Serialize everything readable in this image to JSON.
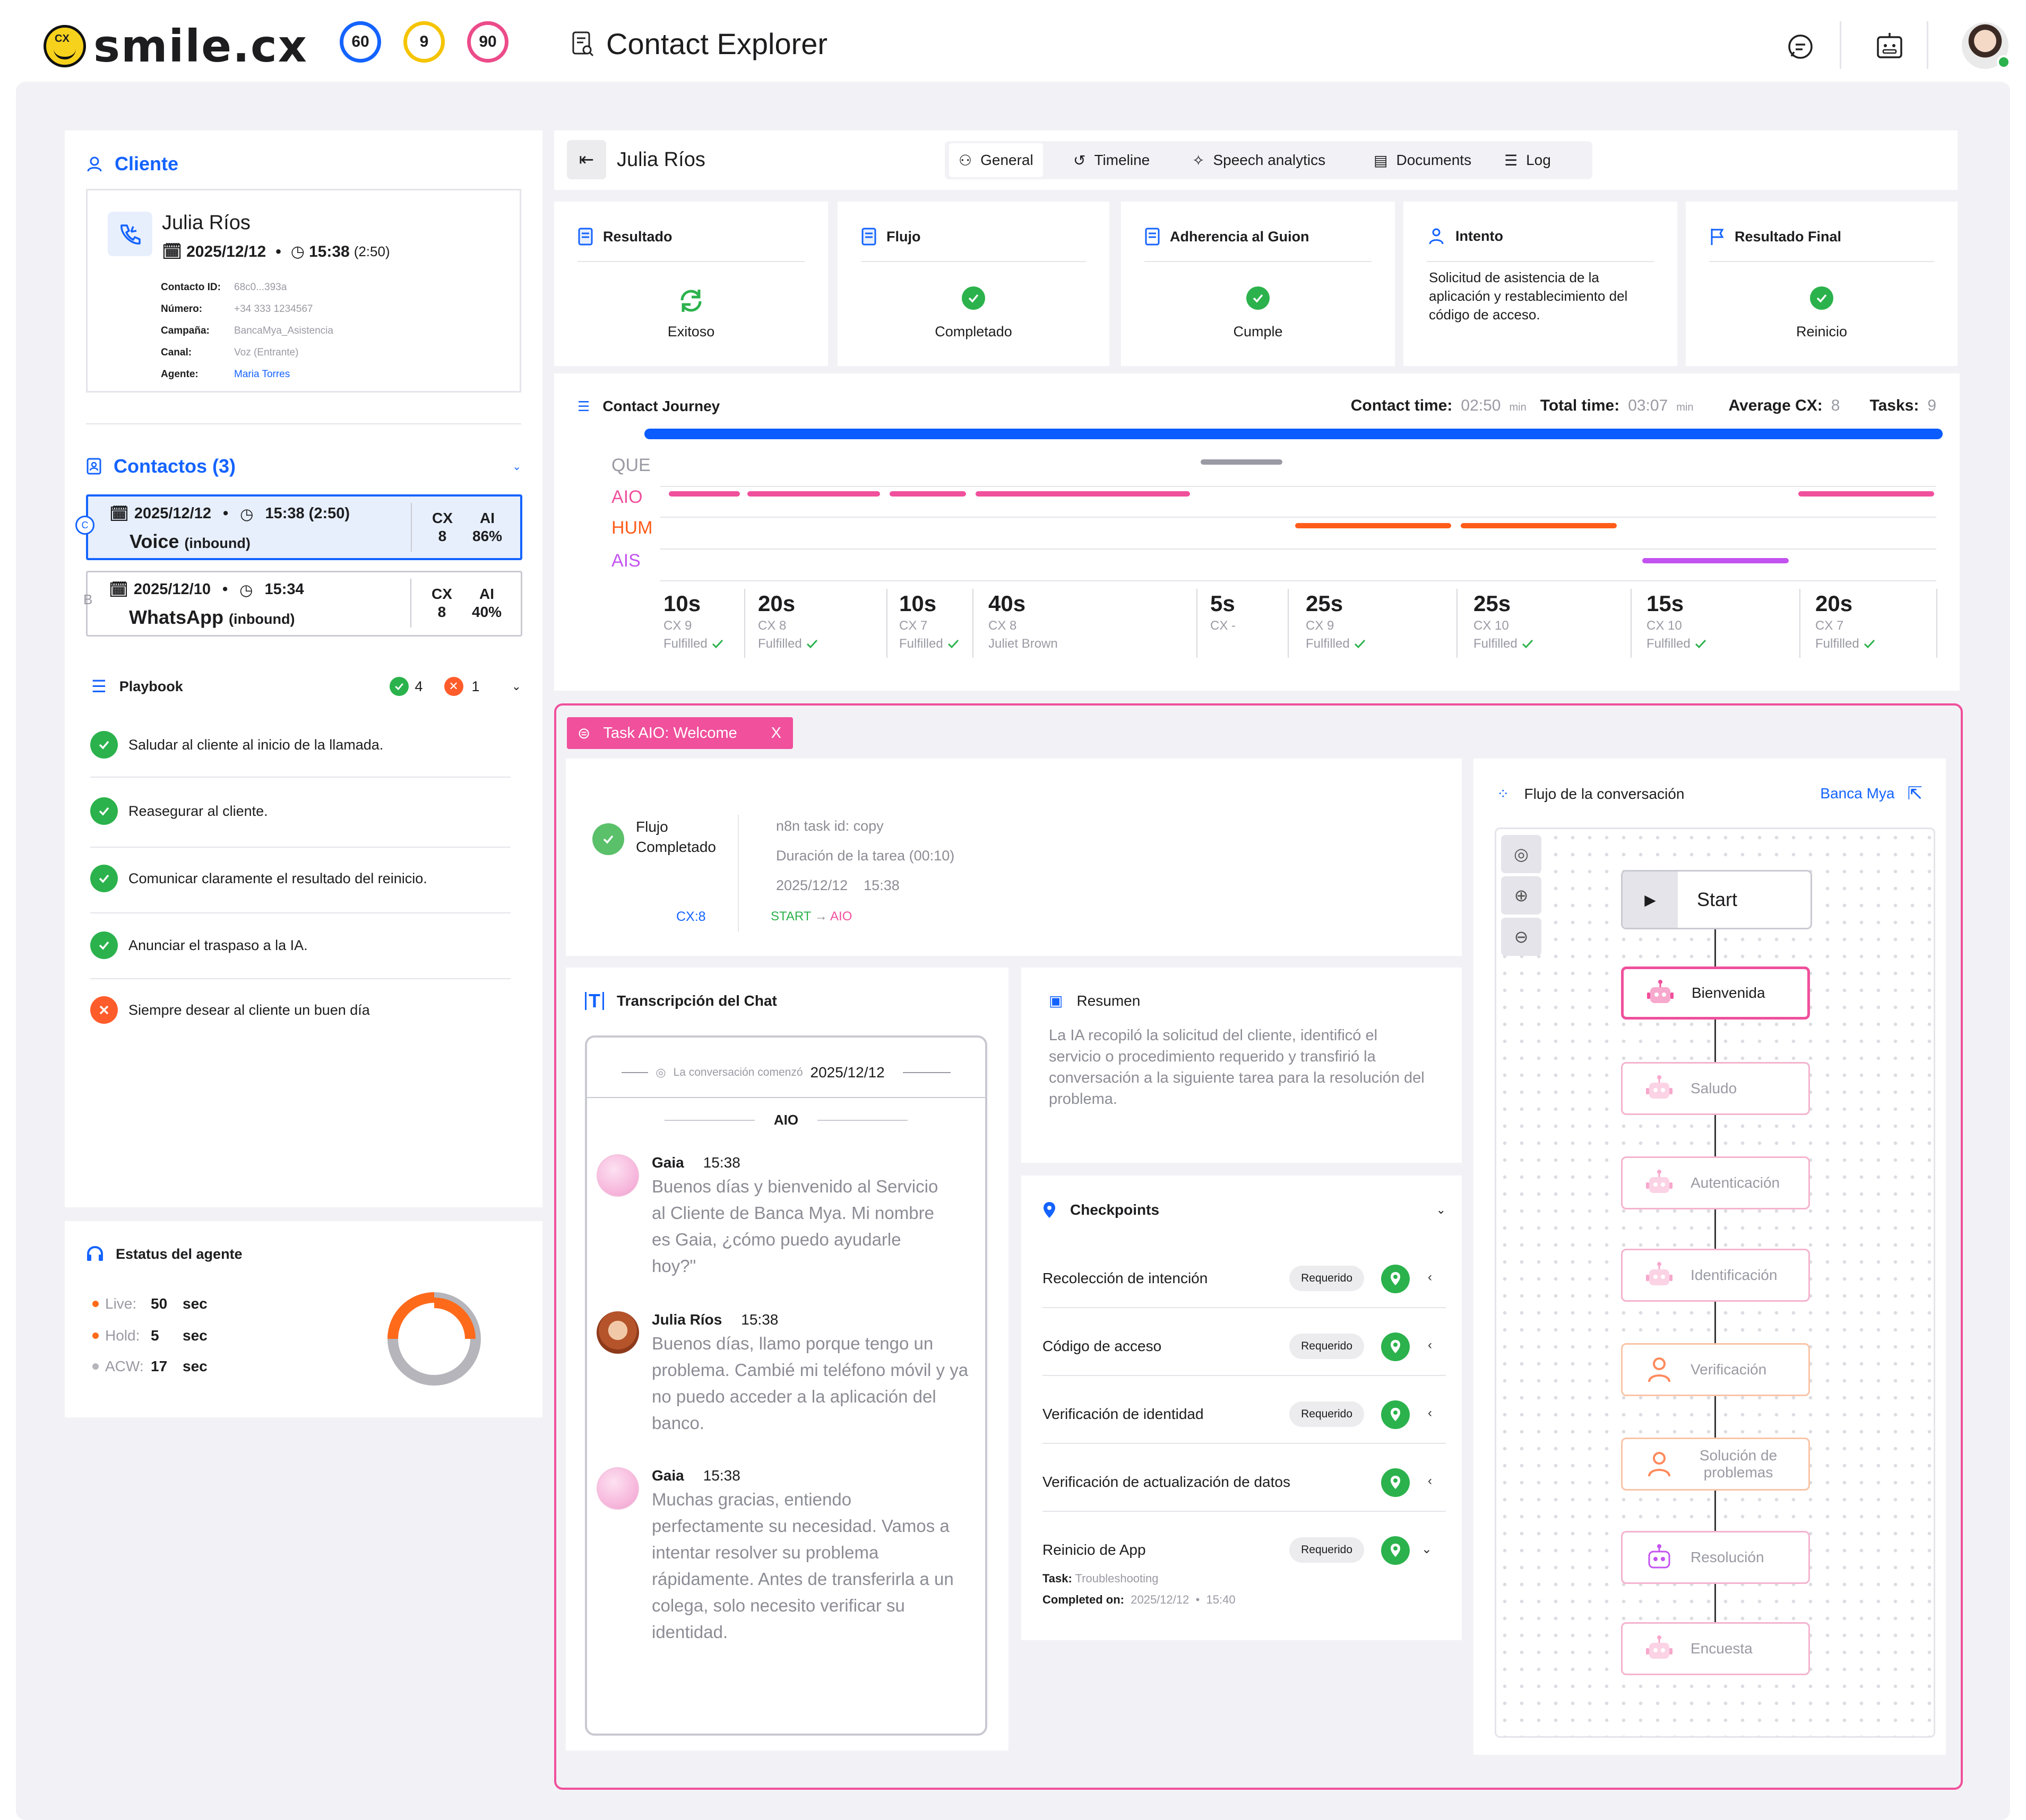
{
  "header": {
    "logo_text": "smile.cx",
    "logo_badge": "CX",
    "scores": [
      "60",
      "9",
      "90"
    ],
    "score_colors": [
      "#1463ff",
      "#f5c400",
      "#ec4b8a"
    ],
    "title": "Contact Explorer"
  },
  "cliente": {
    "section_title": "Cliente",
    "name": "Julia Ríos",
    "date": "2025/12/12",
    "time": "15:38",
    "duration": "(2:50)",
    "fields": [
      {
        "label": "Contacto ID:",
        "value": "68c0...393a"
      },
      {
        "label": "Número:",
        "value": "+34 333 1234567"
      },
      {
        "label": "Campaña:",
        "value": "BancaMya_Asistencia"
      },
      {
        "label": "Canal:",
        "value": "Voz (Entrante)"
      },
      {
        "label": "Agente:",
        "value": "Maria Torres"
      }
    ]
  },
  "contactos": {
    "title": "Contactos (3)",
    "items": [
      {
        "marker": "C",
        "date": "2025/12/12",
        "time": "15:38 (2:50)",
        "channel": "Voice",
        "direction": "(inbound)",
        "cx_label": "CX",
        "cx": "8",
        "ai_label": "AI",
        "ai": "86%"
      },
      {
        "marker": "B",
        "date": "2025/12/10",
        "time": "15:34",
        "channel": "WhatsApp",
        "direction": "(inbound)",
        "cx_label": "CX",
        "cx": "8",
        "ai_label": "AI",
        "ai": "40%"
      }
    ]
  },
  "playbook": {
    "title": "Playbook",
    "ok_count": "4",
    "fail_count": "1",
    "items": [
      {
        "text": "Saludar al cliente al inicio de la llamada.",
        "status": "ok"
      },
      {
        "text": "Reasegurar al cliente.",
        "status": "ok"
      },
      {
        "text": "Comunicar claramente el resultado del reinicio.",
        "status": "ok"
      },
      {
        "text": "Anunciar el traspaso a la IA.",
        "status": "ok"
      },
      {
        "text": "Siempre desear al cliente un buen día",
        "status": "fail"
      }
    ]
  },
  "agent_status": {
    "title": "Estatus del agente",
    "rows": [
      {
        "label": "Live:",
        "value": "50",
        "unit": "sec",
        "color": "#ff6a1a"
      },
      {
        "label": "Hold:",
        "value": "5",
        "unit": "sec",
        "color": "#ff6a1a"
      },
      {
        "label": "ACW:",
        "value": "17",
        "unit": "sec",
        "color": "#b5b5bb"
      }
    ]
  },
  "contact_header": {
    "name": "Julia Ríos",
    "tabs": [
      "General",
      "Timeline",
      "Speech analytics",
      "Documents",
      "Log"
    ],
    "active_tab": "General"
  },
  "summary_cards": [
    {
      "title": "Resultado",
      "value": "Exitoso"
    },
    {
      "title": "Flujo",
      "value": "Completado"
    },
    {
      "title": "Adherencia al Guion",
      "value": "Cumple"
    },
    {
      "title": "Intento",
      "value": "Solicitud de asistencia de la aplicación y restablecimiento del código de acceso."
    },
    {
      "title": "Resultado Final",
      "value": "Reinicio"
    }
  ],
  "journey": {
    "title": "Contact Journey",
    "contact_time_label": "Contact time:",
    "contact_time": "02:50",
    "total_time_label": "Total time:",
    "total_time": "03:07",
    "unit": "min",
    "avg_cx_label": "Average CX:",
    "avg_cx": "8",
    "tasks_label": "Tasks:",
    "tasks": "9",
    "lanes": [
      {
        "name": "QUE",
        "color": "#9a9aa4"
      },
      {
        "name": "AIO",
        "color": "#f0509c"
      },
      {
        "name": "HUM",
        "color": "#ff5c1a"
      },
      {
        "name": "AIS",
        "color": "#c353f0"
      }
    ],
    "segments": [
      {
        "duration": "10s",
        "cx": "CX 9",
        "status": "Fulfilled"
      },
      {
        "duration": "20s",
        "cx": "CX 8",
        "status": "Fulfilled"
      },
      {
        "duration": "10s",
        "cx": "CX 7",
        "status": "Fulfilled"
      },
      {
        "duration": "40s",
        "cx": "CX 8",
        "status": "Juliet Brown"
      },
      {
        "duration": "5s",
        "cx": "CX -",
        "status": ""
      },
      {
        "duration": "25s",
        "cx": "CX 9",
        "status": "Fulfilled"
      },
      {
        "duration": "25s",
        "cx": "CX 10",
        "status": "Fulfilled"
      },
      {
        "duration": "15s",
        "cx": "CX 10",
        "status": "Fulfilled"
      },
      {
        "duration": "20s",
        "cx": "CX 7",
        "status": "Fulfilled"
      }
    ]
  },
  "task": {
    "tag": "Task AIO: Welcome",
    "close": "X",
    "flow_label": "Flujo",
    "flow_value": "Completado",
    "cx": "CX:8",
    "task_id": "n8n task id: copy",
    "duration": "Duración de la tarea (00:10)",
    "date": "2025/12/12",
    "time": "15:38",
    "route_from": "START",
    "route_to": "AIO"
  },
  "transcript": {
    "title": "Transcripción del Chat",
    "started_label": "La conversación comenzó",
    "started_date": "2025/12/12",
    "section": "AIO",
    "messages": [
      {
        "name": "Gaia",
        "time": "15:38",
        "text": "Buenos días y bienvenido al Servicio al Cliente de Banca Mya. Mi nombre es Gaia, ¿cómo puedo ayudarle hoy?\""
      },
      {
        "name": "Julia Ríos",
        "time": "15:38",
        "text": "Buenos días, llamo porque tengo un problema. Cambié mi teléfono móvil y ya no puedo acceder a la aplicación del banco."
      },
      {
        "name": "Gaia",
        "time": "15:38",
        "text": "Muchas gracias, entiendo perfectamente su necesidad. Vamos a intentar resolver su problema rápidamente. Antes de transferirla a un colega, solo necesito verificar su identidad."
      }
    ]
  },
  "resumen": {
    "title": "Resumen",
    "text": "La IA recopiló la solicitud del cliente, identificó el servicio o procedimiento requerido y transfirió la conversación a la siguiente tarea para la resolución del problema."
  },
  "checkpoints": {
    "title": "Checkpoints",
    "items": [
      {
        "label": "Recolección de intención",
        "badge": "Requerido"
      },
      {
        "label": "Código de acceso",
        "badge": "Requerido"
      },
      {
        "label": "Verificación de identidad",
        "badge": "Requerido"
      },
      {
        "label": "Verificación de actualización de datos",
        "badge": ""
      },
      {
        "label": "Reinicio de App",
        "badge": "Requerido"
      }
    ],
    "detail": {
      "task_label": "Task:",
      "task_value": "Troubleshooting",
      "completed_label": "Completed on:",
      "completed_date": "2025/12/12",
      "completed_time": "15:40"
    }
  },
  "flow": {
    "title": "Flujo de la conversación",
    "link": "Banca Mya",
    "nodes": [
      {
        "label": "Start",
        "kind": "start"
      },
      {
        "label": "Bienvenida",
        "kind": "bot-active"
      },
      {
        "label": "Saludo",
        "kind": "bot"
      },
      {
        "label": "Autenticación",
        "kind": "bot"
      },
      {
        "label": "Identificación",
        "kind": "bot"
      },
      {
        "label": "Verificación",
        "kind": "human"
      },
      {
        "label": "Solución de problemas",
        "kind": "human"
      },
      {
        "label": "Resolución",
        "kind": "ais"
      },
      {
        "label": "Encuesta",
        "kind": "bot"
      }
    ]
  }
}
